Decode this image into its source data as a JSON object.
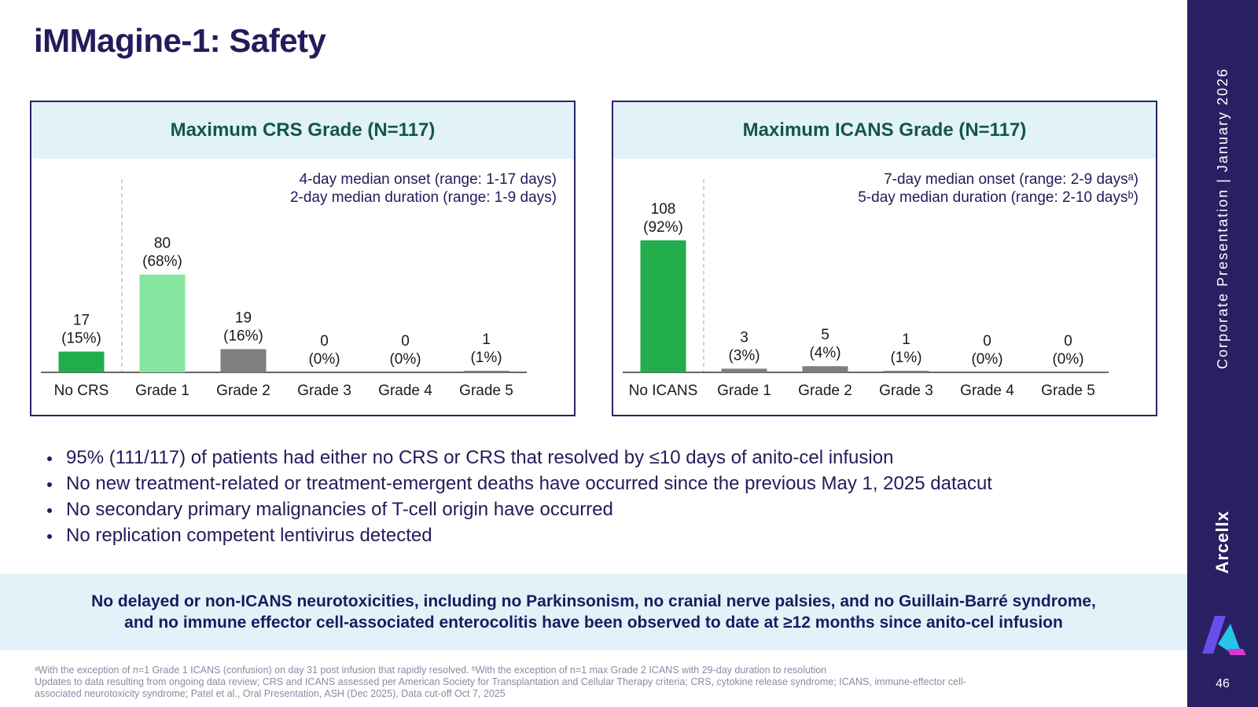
{
  "title": "iMMagine-1: Safety",
  "chart_data": [
    {
      "type": "bar",
      "title": "Maximum CRS Grade (N=117)",
      "categories": [
        "No CRS",
        "Grade 1",
        "Grade 2",
        "Grade 3",
        "Grade 4",
        "Grade 5"
      ],
      "values": [
        17,
        80,
        19,
        0,
        0,
        1
      ],
      "labels": [
        [
          "17",
          "(15%)"
        ],
        [
          "80",
          "(68%)"
        ],
        [
          "19",
          "(16%)"
        ],
        [
          "0",
          "(0%)"
        ],
        [
          "0",
          "(0%)"
        ],
        [
          "1",
          "(1%)"
        ]
      ],
      "colors": [
        "#22ad4c",
        "#86e6a0",
        "#7f7f7f",
        "#7f7f7f",
        "#7f7f7f",
        "#7f7f7f"
      ],
      "annotations": [
        "4-day median onset (range: 1-17 days)",
        "2-day median duration (range: 1-9 days)"
      ],
      "ylim": [
        0,
        117
      ]
    },
    {
      "type": "bar",
      "title": "Maximum ICANS Grade (N=117)",
      "categories": [
        "No ICANS",
        "Grade 1",
        "Grade 2",
        "Grade 3",
        "Grade 4",
        "Grade 5"
      ],
      "values": [
        108,
        3,
        5,
        1,
        0,
        0
      ],
      "labels": [
        [
          "108",
          "(92%)"
        ],
        [
          "3",
          "(3%)"
        ],
        [
          "5",
          "(4%)"
        ],
        [
          "1",
          "(1%)"
        ],
        [
          "0",
          "(0%)"
        ],
        [
          "0",
          "(0%)"
        ]
      ],
      "colors": [
        "#22ad4c",
        "#7f7f7f",
        "#7f7f7f",
        "#7f7f7f",
        "#7f7f7f",
        "#7f7f7f"
      ],
      "annotations": [
        "7-day median onset (range: 2-9 daysᵃ)",
        "5-day median duration (range: 2-10 daysᵇ)"
      ],
      "ylim": [
        0,
        117
      ]
    }
  ],
  "bullets": [
    "95% (111/117) of patients had either no CRS or CRS that resolved by ≤10 days of anito-cel infusion",
    "No new treatment-related or treatment-emergent deaths have occurred since the previous May 1, 2025 datacut",
    "No secondary primary malignancies of T-cell origin have occurred",
    "No replication competent lentivirus detected"
  ],
  "callout": {
    "line1": "No delayed or non-ICANS neurotoxicities, including no Parkinsonism, no cranial nerve palsies, and no Guillain-Barré syndrome,",
    "line2": "and no immune effector cell-associated enterocolitis have been observed to date at ≥12 months since anito-cel infusion"
  },
  "footnotes": [
    "ᵃWith the exception of n=1 Grade 1 ICANS (confusion) on day 31 post infusion that rapidly resolved. ᵇWith the exception of n=1 max Grade 2 ICANS with 29-day duration to resolution",
    "Updates to data resulting from ongoing data review; CRS and ICANS assessed per American Society for Transplantation and Cellular Therapy criteria; CRS, cytokine release syndrome; ICANS, immune-effector cell-",
    "associated neurotoxicity syndrome; Patel et al., Oral Presentation, ASH (Dec 2025), Data cut-off Oct 7, 2025"
  ],
  "sidebar": {
    "presentation": "Corporate Presentation  |  January 2026",
    "brand": "Arcellx",
    "page_number": "46",
    "logo_colors": [
      "#6a4de8",
      "#27c3e8",
      "#d63ad0"
    ]
  }
}
